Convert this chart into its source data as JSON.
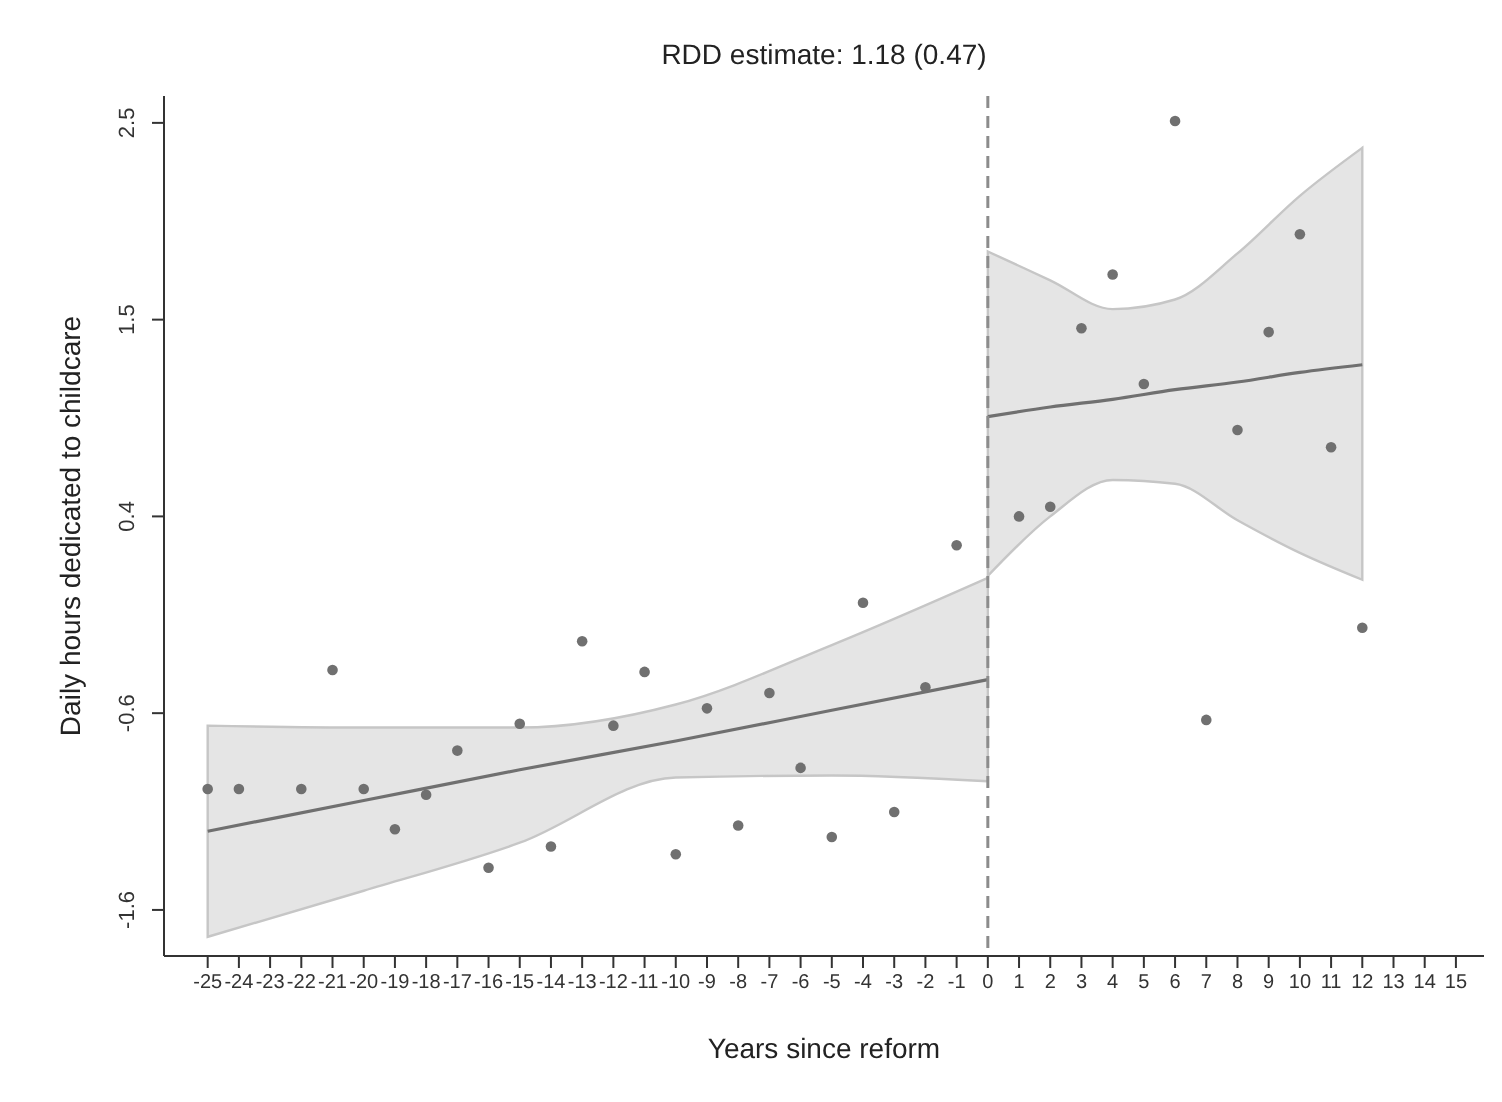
{
  "chart_data": {
    "type": "scatter",
    "title": "RDD estimate: 1.18 (0.47)",
    "xlabel": "Years since reform",
    "ylabel": "Daily hours dedicated to childcare",
    "xlim": [
      -26.4,
      15.9
    ],
    "xticks": [
      -25,
      -24,
      -23,
      -22,
      -21,
      -20,
      -19,
      -18,
      -17,
      -16,
      -15,
      -14,
      -13,
      -12,
      -11,
      -10,
      -9,
      -8,
      -7,
      -6,
      -5,
      -4,
      -3,
      -2,
      -1,
      0,
      1,
      2,
      3,
      4,
      5,
      6,
      7,
      8,
      9,
      10,
      11,
      12,
      13,
      14,
      15
    ],
    "ylim": [
      -1.84,
      2.64
    ],
    "yticks": [
      -1.6,
      {
        "value": -0.575,
        "label": "-0.6"
      },
      {
        "value": 0.45,
        "label": "0.4"
      },
      {
        "value": 1.475,
        "label": "1.5"
      },
      2.5
    ],
    "grid": false,
    "marker": "circle",
    "ref_lines": [
      {
        "axis": "x",
        "value": 0,
        "label": null,
        "color": "#8c8c8c",
        "line_style": "dashed"
      }
    ],
    "series": [
      {
        "color": "#707070",
        "x": [
          -25,
          -24,
          -22,
          -21,
          -20,
          -19,
          -18,
          -17,
          -16,
          -15,
          -14,
          -13,
          -12,
          -11,
          -10,
          -9,
          -8,
          -7,
          -6,
          -5,
          -4,
          -3,
          -2,
          -1,
          1,
          2,
          3,
          4,
          5,
          6,
          7,
          8,
          9,
          10,
          11,
          12
        ],
        "values": [
          -0.97,
          -0.97,
          -0.97,
          -0.35,
          -0.97,
          -1.18,
          -1.0,
          -0.77,
          -1.38,
          -0.63,
          -1.27,
          -0.2,
          -0.64,
          -0.36,
          -1.31,
          -0.55,
          -1.16,
          -0.47,
          -0.86,
          -1.22,
          0.0,
          -1.09,
          -0.44,
          0.3,
          0.45,
          0.5,
          1.43,
          1.71,
          1.14,
          2.51,
          -0.61,
          0.9,
          1.41,
          1.92,
          0.81,
          -0.13
        ]
      },
      {
        "type": "line",
        "marker": "none",
        "color": "#707070",
        "x": [
          -25,
          -20,
          -15,
          -10,
          -5,
          0
        ],
        "values": [
          -1.19,
          -1.03,
          -0.87,
          -0.72,
          -0.56,
          -0.4
        ],
        "lower": [
          -1.74,
          -1.5,
          -1.25,
          -0.91,
          -0.9,
          -0.93
        ],
        "upper": [
          -0.64,
          -0.65,
          -0.65,
          -0.53,
          -0.22,
          0.13
        ]
      },
      {
        "type": "line",
        "marker": "none",
        "color": "#707070",
        "x": [
          0,
          2,
          4,
          6,
          8,
          10,
          12
        ],
        "values": [
          0.97,
          1.02,
          1.06,
          1.11,
          1.15,
          1.2,
          1.24
        ],
        "lower": [
          0.14,
          0.45,
          0.64,
          0.62,
          0.43,
          0.26,
          0.12
        ],
        "upper": [
          1.83,
          1.68,
          1.53,
          1.58,
          1.82,
          2.12,
          2.37
        ]
      }
    ]
  }
}
